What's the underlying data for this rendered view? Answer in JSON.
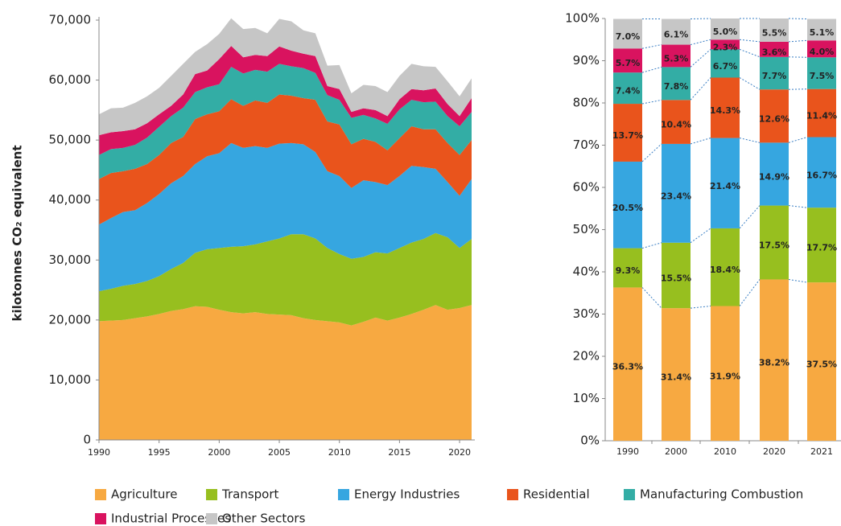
{
  "chart_data": [
    {
      "type": "area",
      "ylabel": "kilotonnes CO₂ equivalent",
      "x": [
        1990,
        1991,
        1992,
        1993,
        1994,
        1995,
        1996,
        1997,
        1998,
        1999,
        2000,
        2001,
        2002,
        2003,
        2004,
        2005,
        2006,
        2007,
        2008,
        2009,
        2010,
        2011,
        2012,
        2013,
        2014,
        2015,
        2016,
        2017,
        2018,
        2019,
        2020,
        2021
      ],
      "xlim": [
        1990,
        2021
      ],
      "xticks": [
        1990,
        1995,
        2000,
        2005,
        2010,
        2015,
        2020
      ],
      "ylim": [
        0,
        70000
      ],
      "yticks": [
        0,
        {
          "value": 10000,
          "label": "10,000"
        },
        {
          "value": 20000,
          "label": "20,000"
        },
        {
          "value": 30000,
          "label": "30,000"
        },
        {
          "value": 40000,
          "label": "40,000"
        },
        {
          "value": 50000,
          "label": "50,000"
        },
        {
          "value": 60000,
          "label": "60,000"
        },
        {
          "value": 70000,
          "label": "70,000"
        }
      ],
      "stacked": true,
      "series": [
        {
          "name": "Agriculture",
          "color": "#f7a941",
          "values": [
            19800,
            19900,
            20000,
            20300,
            20600,
            21000,
            21500,
            21800,
            22300,
            22200,
            21700,
            21300,
            21100,
            21300,
            21000,
            20900,
            20800,
            20300,
            20000,
            19800,
            19600,
            19100,
            19700,
            20400,
            19900,
            20400,
            21000,
            21700,
            22500,
            21700,
            22000,
            22500
          ]
        },
        {
          "name": "Transport",
          "color": "#97bf1f",
          "values": [
            5000,
            5300,
            5700,
            5700,
            5900,
            6300,
            7000,
            7700,
            8900,
            9600,
            10300,
            10900,
            11200,
            11300,
            12100,
            12700,
            13500,
            14000,
            13600,
            12200,
            11400,
            11100,
            10800,
            10900,
            11200,
            11600,
            11900,
            11800,
            12000,
            12100,
            10000,
            11000
          ]
        },
        {
          "name": "Energy Industries",
          "color": "#36a6e0",
          "values": [
            11100,
            11800,
            12300,
            12300,
            13000,
            13700,
            14300,
            14500,
            14800,
            15500,
            15800,
            17300,
            16400,
            16400,
            15600,
            15800,
            15200,
            15000,
            14400,
            12800,
            13000,
            11800,
            12800,
            11700,
            11400,
            12000,
            12800,
            12000,
            10700,
            9200,
            8700,
            10000
          ]
        },
        {
          "name": "Residential",
          "color": "#e9541c",
          "values": [
            7600,
            7500,
            6800,
            6900,
            6500,
            6500,
            6700,
            6500,
            7500,
            7000,
            7000,
            7300,
            7000,
            7600,
            7500,
            8200,
            7900,
            7700,
            8700,
            8300,
            8600,
            7300,
            6900,
            6700,
            5800,
            6300,
            6600,
            6300,
            6600,
            6500,
            6800,
            6500
          ]
        },
        {
          "name": "Manufacturing Combustion",
          "color": "#33ada5",
          "values": [
            4000,
            4000,
            3900,
            4000,
            4400,
            4700,
            4500,
            4900,
            4500,
            4500,
            4500,
            5400,
            5400,
            5100,
            5200,
            5100,
            4900,
            5000,
            4500,
            4400,
            4100,
            4400,
            4000,
            3900,
            4400,
            4800,
            4400,
            4500,
            4600,
            4500,
            4800,
            4700
          ]
        },
        {
          "name": "Industrial Processes",
          "color": "#d9135f",
          "values": [
            3300,
            2800,
            2800,
            2600,
            2400,
            2100,
            1700,
            2200,
            3000,
            2800,
            4200,
            3500,
            2700,
            2500,
            2600,
            2900,
            2600,
            2400,
            2800,
            1500,
            1800,
            1000,
            1100,
            1400,
            1300,
            1700,
            1800,
            2000,
            2200,
            2000,
            1700,
            2300
          ]
        },
        {
          "name": "Other Sectors",
          "color": "#c6c6c6",
          "values": [
            3500,
            4000,
            3900,
            4400,
            4500,
            4400,
            5000,
            5100,
            3700,
            4400,
            4200,
            4600,
            4700,
            4500,
            3800,
            4600,
            4900,
            3900,
            3800,
            3400,
            4000,
            3100,
            3900,
            4000,
            4000,
            3900,
            4200,
            4000,
            3600,
            3800,
            3300,
            3300
          ]
        }
      ]
    },
    {
      "type": "bar",
      "stacked": true,
      "categories": [
        "1990",
        "2000",
        "2010",
        "2020",
        "2021"
      ],
      "ylim": [
        0,
        100
      ],
      "yticks": [
        {
          "value": 0,
          "label": "0%"
        },
        {
          "value": 10,
          "label": "10%"
        },
        {
          "value": 20,
          "label": "20%"
        },
        {
          "value": 30,
          "label": "30%"
        },
        {
          "value": 40,
          "label": "40%"
        },
        {
          "value": 50,
          "label": "50%"
        },
        {
          "value": 60,
          "label": "60%"
        },
        {
          "value": 70,
          "label": "70%"
        },
        {
          "value": 80,
          "label": "80%"
        },
        {
          "value": 90,
          "label": "90%"
        },
        {
          "value": 100,
          "label": "100%"
        }
      ],
      "series": [
        {
          "color": "#f7a941",
          "values": [
            36.3,
            31.4,
            31.9,
            38.2,
            37.5
          ],
          "value_labels": [
            "36.3%",
            "31.4%",
            "31.9%",
            "38.2%",
            "37.5%"
          ]
        },
        {
          "color": "#97bf1f",
          "values": [
            9.3,
            15.5,
            18.4,
            17.5,
            17.7
          ],
          "value_labels": [
            "9.3%",
            "15.5%",
            "18.4%",
            "17.5%",
            "17.7%"
          ]
        },
        {
          "color": "#36a6e0",
          "values": [
            20.5,
            23.4,
            21.4,
            14.9,
            16.7
          ],
          "value_labels": [
            "20.5%",
            "23.4%",
            "21.4%",
            "14.9%",
            "16.7%"
          ]
        },
        {
          "color": "#e9541c",
          "values": [
            13.7,
            10.4,
            14.3,
            12.6,
            11.4
          ],
          "value_labels": [
            "13.7%",
            "10.4%",
            "14.3%",
            "12.6%",
            "11.4%"
          ]
        },
        {
          "color": "#33ada5",
          "values": [
            7.4,
            7.8,
            6.7,
            7.7,
            7.5
          ],
          "value_labels": [
            "7.4%",
            "7.8%",
            "6.7%",
            "7.7%",
            "7.5%"
          ]
        },
        {
          "color": "#d9135f",
          "values": [
            5.7,
            5.3,
            2.3,
            3.6,
            4.0
          ],
          "value_labels": [
            "5.7%",
            "5.3%",
            "2.3%",
            "3.6%",
            "4.0%"
          ]
        },
        {
          "color": "#c6c6c6",
          "values": [
            7.0,
            6.1,
            5.0,
            5.5,
            5.1
          ],
          "value_labels": [
            "7.0%",
            "6.1%",
            "5.0%",
            "5.5%",
            "5.1%"
          ]
        }
      ]
    }
  ]
}
